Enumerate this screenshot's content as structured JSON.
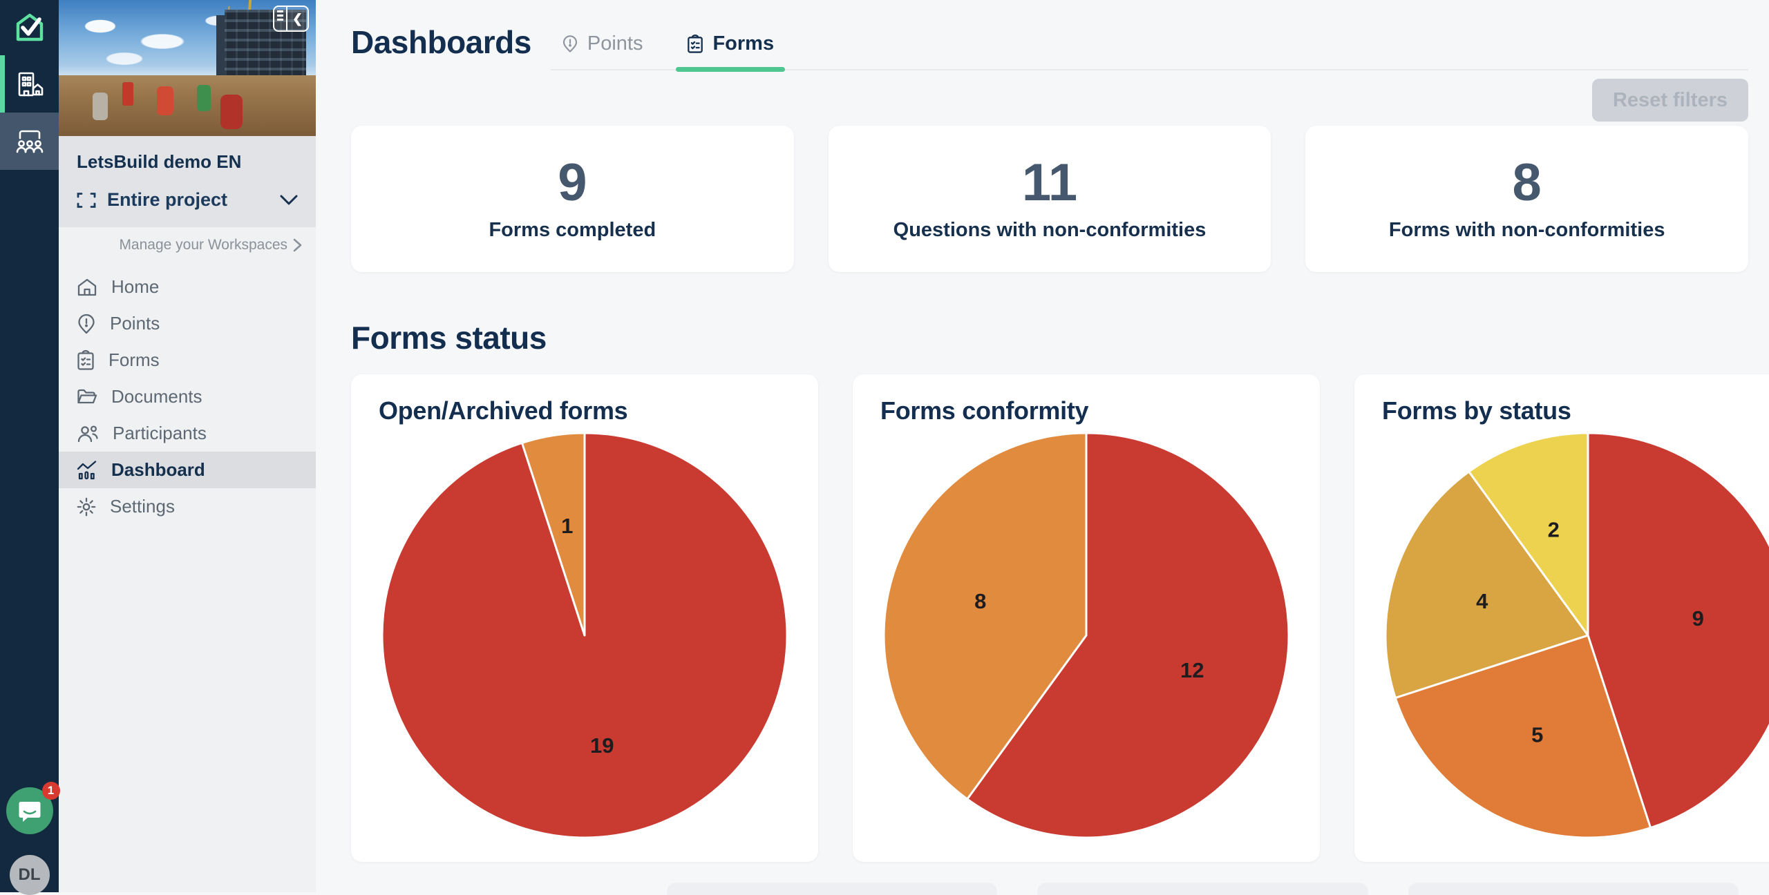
{
  "app": {
    "rail": [
      {
        "icon": "letsbuild-logo",
        "name": "LetsBuild"
      },
      {
        "icon": "organization-building",
        "active": true
      },
      {
        "icon": "meeting-people"
      }
    ],
    "chat_badge": "1",
    "avatar_initials": "DL"
  },
  "sidebar": {
    "project_name": "LetsBuild demo EN",
    "workspace_selector": {
      "label": "Entire project",
      "icon": "expand-brackets"
    },
    "manage_link": "Manage your Workspaces",
    "menu": [
      {
        "label": "Home",
        "icon": "home"
      },
      {
        "label": "Points",
        "icon": "pin-exclamation"
      },
      {
        "label": "Forms",
        "icon": "clipboard-checklist"
      },
      {
        "label": "Documents",
        "icon": "folder-open"
      },
      {
        "label": "Participants",
        "icon": "people"
      },
      {
        "label": "Dashboard",
        "icon": "line-chart",
        "active": true
      },
      {
        "label": "Settings",
        "icon": "gear"
      }
    ]
  },
  "header": {
    "title": "Dashboards",
    "tabs": [
      {
        "label": "Points",
        "icon": "pin-exclamation",
        "active": false
      },
      {
        "label": "Forms",
        "icon": "clipboard-checklist",
        "active": true
      }
    ],
    "reset_button": "Reset filters"
  },
  "stats": [
    {
      "value": "9",
      "label": "Forms completed"
    },
    {
      "value": "11",
      "label": "Questions with non-conformities"
    },
    {
      "value": "8",
      "label": "Forms with non-conformities"
    }
  ],
  "section": {
    "title": "Forms status"
  },
  "chart_data": [
    {
      "type": "pie",
      "title": "Open/Archived forms",
      "start_angle_deg": 0,
      "direction": "clockwise",
      "slices": [
        {
          "value": 19,
          "color": "#c93b31"
        },
        {
          "value": 1,
          "color": "#e18b3f"
        }
      ]
    },
    {
      "type": "pie",
      "title": "Forms conformity",
      "start_angle_deg": 0,
      "direction": "clockwise",
      "slices": [
        {
          "value": 12,
          "color": "#c93b31"
        },
        {
          "value": 8,
          "color": "#e18b3f"
        }
      ]
    },
    {
      "type": "pie",
      "title": "Forms by status",
      "start_angle_deg": 0,
      "direction": "clockwise",
      "slices": [
        {
          "value": 9,
          "color": "#c93b31"
        },
        {
          "value": 5,
          "color": "#e07c37"
        },
        {
          "value": 4,
          "color": "#d9a542"
        },
        {
          "value": 2,
          "color": "#ecd24f"
        }
      ]
    }
  ],
  "colors": {
    "accent_green": "#4ec690",
    "rail_navy": "#13293f",
    "navy_text": "#14304e",
    "red": "#c93b31",
    "orange": "#e18b3f",
    "gold": "#d9a542",
    "yellow": "#ecd24f"
  }
}
